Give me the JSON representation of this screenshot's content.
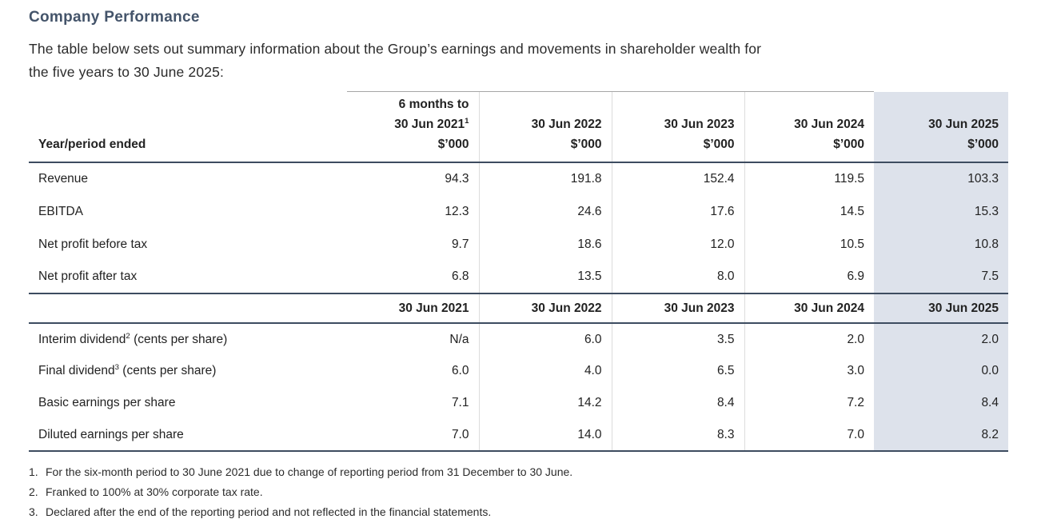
{
  "title": "Company Performance",
  "intro": {
    "line1": "The table below sets out summary information about the Group’s earnings and movements in shareholder wealth for",
    "line2": "the five years to 30 June 2025:"
  },
  "table": {
    "s1": {
      "row_header": "Year/period ended",
      "cols": [
        {
          "top": "6 months to",
          "date": "30 Jun 2021",
          "sup": "1",
          "unit": "$’000"
        },
        {
          "date": "30 Jun 2022",
          "unit": "$’000"
        },
        {
          "date": "30 Jun 2023",
          "unit": "$’000"
        },
        {
          "date": "30 Jun 2024",
          "unit": "$’000"
        },
        {
          "date": "30 Jun 2025",
          "unit": "$’000"
        }
      ],
      "rows": [
        {
          "label": "Revenue",
          "values": [
            "94.3",
            "191.8",
            "152.4",
            "119.5",
            "103.3"
          ]
        },
        {
          "label": "EBITDA",
          "values": [
            "12.3",
            "24.6",
            "17.6",
            "14.5",
            "15.3"
          ]
        },
        {
          "label": "Net profit before tax",
          "values": [
            "9.7",
            "18.6",
            "12.0",
            "10.5",
            "10.8"
          ]
        },
        {
          "label": "Net profit after tax",
          "values": [
            "6.8",
            "13.5",
            "8.0",
            "6.9",
            "7.5"
          ]
        }
      ]
    },
    "s2": {
      "cols": [
        "30 Jun 2021",
        "30 Jun 2022",
        "30 Jun 2023",
        "30 Jun 2024",
        "30 Jun 2025"
      ],
      "rows": [
        {
          "pre": "Interim dividend",
          "sup": "2",
          "post": " (cents per share)",
          "values": [
            "N/a",
            "6.0",
            "3.5",
            "2.0",
            "2.0"
          ]
        },
        {
          "pre": "Final dividend",
          "sup": "3",
          "post": " (cents per share)",
          "values": [
            "6.0",
            "4.0",
            "6.5",
            "3.0",
            "0.0"
          ]
        },
        {
          "pre": "Basic earnings per share",
          "sup": "",
          "post": "",
          "values": [
            "7.1",
            "14.2",
            "8.4",
            "7.2",
            "8.4"
          ]
        },
        {
          "pre": "Diluted earnings per share",
          "sup": "",
          "post": "",
          "values": [
            "7.0",
            "14.0",
            "8.3",
            "7.0",
            "8.2"
          ]
        }
      ]
    }
  },
  "footnotes": [
    {
      "num": "1.",
      "text": "For the six-month period to 30 June 2021 due to change of reporting period from 31 December to 30 June."
    },
    {
      "num": "2.",
      "text": "Franked to 100% at 30% corporate tax rate."
    },
    {
      "num": "3.",
      "text": "Declared after the end of the reporting period and not reflected in the financial statements."
    }
  ],
  "colors": {
    "accent": "#44546a",
    "highlight": "#dde2eb",
    "heavy_border": "#3d4c60"
  }
}
